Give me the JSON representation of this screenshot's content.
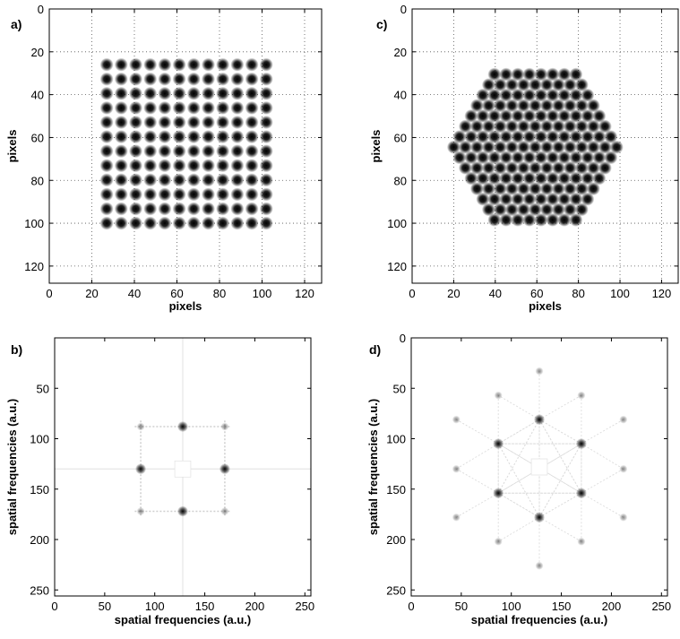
{
  "chart_data": [
    {
      "panel": "a)",
      "type": "heatmap",
      "pattern": "square",
      "xlabel": "pixels",
      "ylabel": "pixels",
      "xlim": [
        0,
        128
      ],
      "ylim": [
        0,
        128
      ],
      "y_reversed": true,
      "xticks": [
        0,
        20,
        40,
        60,
        80,
        100,
        120
      ],
      "yticks": [
        0,
        20,
        40,
        60,
        80,
        100,
        120
      ],
      "grid": "dotted",
      "lattice": {
        "x_start": 27,
        "x_end": 102,
        "y_start": 26,
        "y_end": 100,
        "rows": 12,
        "cols": 12
      }
    },
    {
      "panel": "b)",
      "type": "heatmap",
      "pattern": "square-fft",
      "xlabel": "spatial frequencies (a.u.)",
      "ylabel": "spatial frequencies (a.u.)",
      "xlim": [
        0,
        256
      ],
      "ylim": [
        0,
        256
      ],
      "y_reversed": true,
      "xticks": [
        0,
        50,
        100,
        150,
        200,
        250
      ],
      "yticks": [
        50,
        100,
        150,
        200,
        250
      ],
      "grid": "none",
      "peaks": [
        {
          "x": 128,
          "y": 88,
          "intensity": 1.0
        },
        {
          "x": 86,
          "y": 130,
          "intensity": 1.0
        },
        {
          "x": 170,
          "y": 130,
          "intensity": 1.0
        },
        {
          "x": 128,
          "y": 172,
          "intensity": 1.0
        },
        {
          "x": 86,
          "y": 88,
          "intensity": 0.45
        },
        {
          "x": 170,
          "y": 88,
          "intensity": 0.45
        },
        {
          "x": 86,
          "y": 172,
          "intensity": 0.45
        },
        {
          "x": 170,
          "y": 172,
          "intensity": 0.45
        }
      ]
    },
    {
      "panel": "c)",
      "type": "heatmap",
      "pattern": "hexagonal",
      "xlabel": "pixels",
      "ylabel": "pixels",
      "xlim": [
        0,
        128
      ],
      "ylim": [
        0,
        128
      ],
      "y_reversed": true,
      "xticks": [
        0,
        20,
        40,
        60,
        80,
        100,
        120
      ],
      "yticks": [
        0,
        20,
        40,
        60,
        80,
        100,
        120
      ],
      "grid": "dotted",
      "lattice": {
        "center_x": 60,
        "center_y": 64.5,
        "spacing": 5.6,
        "rows_above_below": 7,
        "y_min": 27,
        "y_max": 103,
        "x_min": 20,
        "x_max": 100
      }
    },
    {
      "panel": "d)",
      "type": "heatmap",
      "pattern": "hexagonal-fft",
      "xlabel": "spatial frequencies (a.u.)",
      "ylabel": "spatial frequencies (a.u.)",
      "xlim": [
        0,
        256
      ],
      "ylim": [
        0,
        256
      ],
      "y_reversed": true,
      "xticks": [
        0,
        50,
        100,
        150,
        200,
        250
      ],
      "yticks": [
        0,
        50,
        100,
        150,
        200,
        250
      ],
      "grid": "none",
      "peaks": [
        {
          "x": 128,
          "y": 81,
          "intensity": 1.0
        },
        {
          "x": 87,
          "y": 105,
          "intensity": 1.0
        },
        {
          "x": 170,
          "y": 105,
          "intensity": 1.0
        },
        {
          "x": 87,
          "y": 154,
          "intensity": 1.0
        },
        {
          "x": 170,
          "y": 154,
          "intensity": 1.0
        },
        {
          "x": 128,
          "y": 178,
          "intensity": 1.0
        },
        {
          "x": 128,
          "y": 33,
          "intensity": 0.3
        },
        {
          "x": 87,
          "y": 57,
          "intensity": 0.3
        },
        {
          "x": 170,
          "y": 57,
          "intensity": 0.3
        },
        {
          "x": 45,
          "y": 81,
          "intensity": 0.3
        },
        {
          "x": 212,
          "y": 81,
          "intensity": 0.3
        },
        {
          "x": 45,
          "y": 130,
          "intensity": 0.3
        },
        {
          "x": 212,
          "y": 130,
          "intensity": 0.3
        },
        {
          "x": 45,
          "y": 178,
          "intensity": 0.3
        },
        {
          "x": 212,
          "y": 178,
          "intensity": 0.3
        },
        {
          "x": 87,
          "y": 202,
          "intensity": 0.3
        },
        {
          "x": 170,
          "y": 202,
          "intensity": 0.3
        },
        {
          "x": 128,
          "y": 226,
          "intensity": 0.3
        }
      ]
    }
  ]
}
